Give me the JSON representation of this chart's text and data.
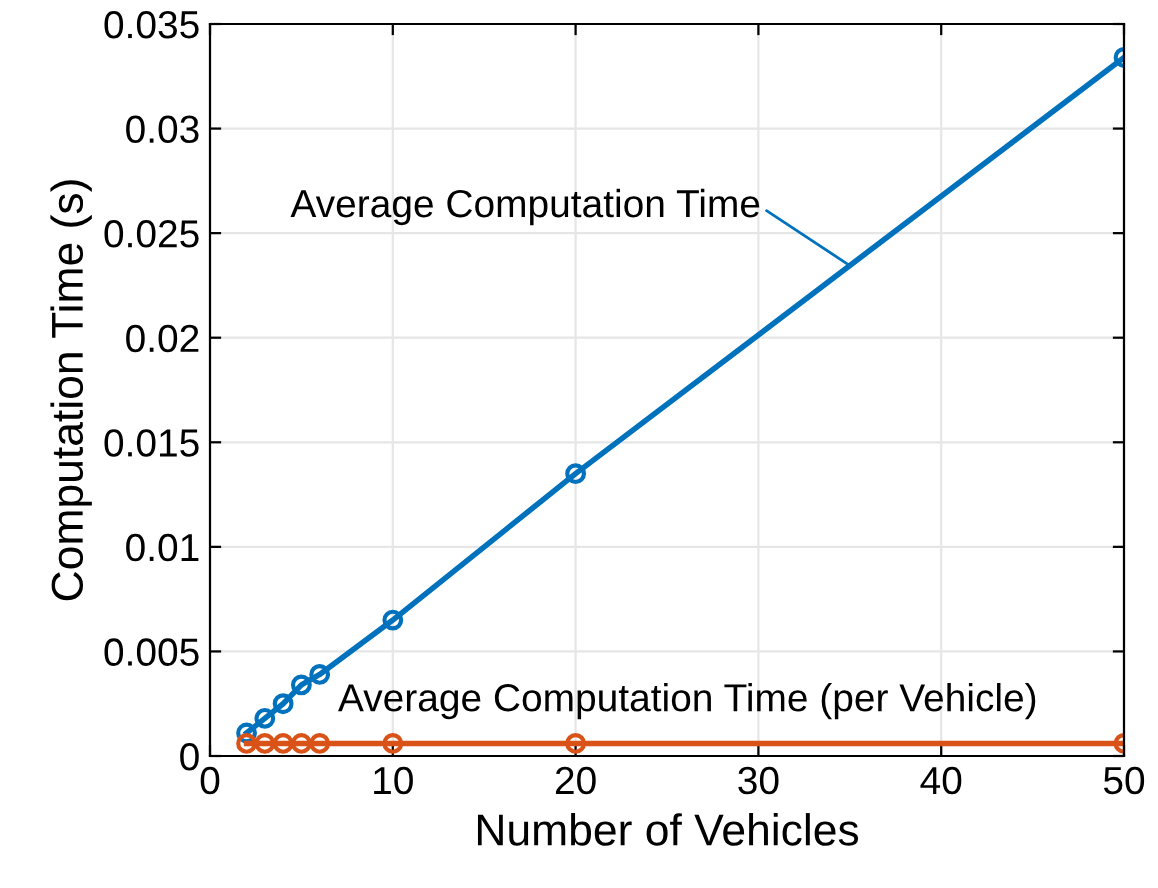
{
  "chart_data": {
    "type": "line",
    "xlabel": "Number of Vehicles",
    "ylabel": "Computation Time (s)",
    "x": [
      2,
      3,
      4,
      5,
      6,
      10,
      20,
      50
    ],
    "series": [
      {
        "name": "Average Computation Time",
        "color": "#0072bd",
        "values": [
          0.0011,
          0.0018,
          0.0025,
          0.0034,
          0.0039,
          0.0065,
          0.0135,
          0.0334
        ]
      },
      {
        "name": "Average Computation Time (per Vehicle)",
        "color": "#d95319",
        "values": [
          0.0006,
          0.0006,
          0.0006,
          0.0006,
          0.0006,
          0.0006,
          0.0006,
          0.0006
        ]
      }
    ],
    "xlim": [
      0,
      50
    ],
    "xticks": [
      0,
      10,
      20,
      30,
      40,
      50
    ],
    "ylim": [
      0,
      0.035
    ],
    "yticks": [
      0,
      0.005,
      0.01,
      0.015,
      0.02,
      0.025,
      0.03,
      0.035
    ],
    "grid": true,
    "marker": "circle",
    "line_style": "solid",
    "legend": false
  }
}
